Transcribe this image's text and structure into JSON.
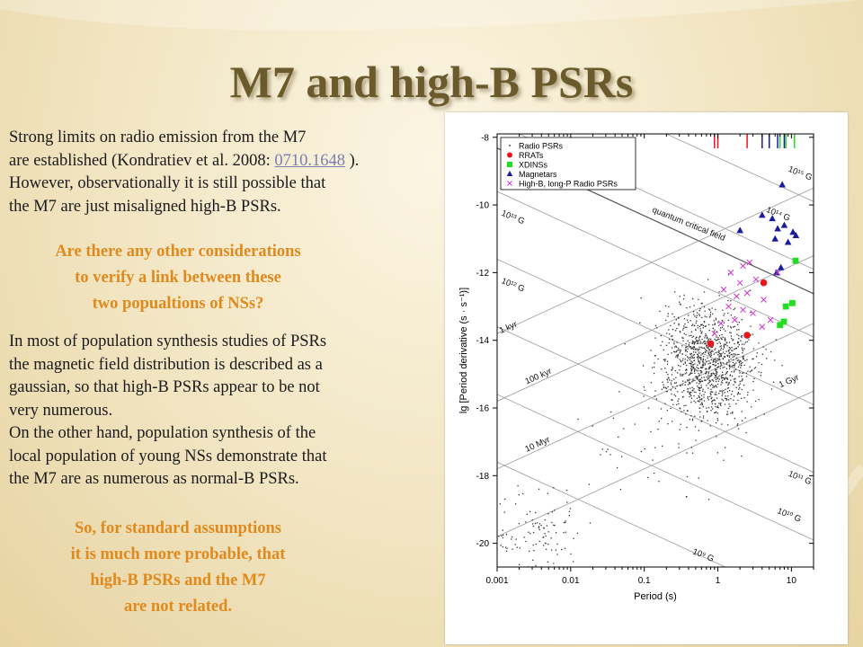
{
  "slide": {
    "title": "M7 and high-B PSRs",
    "para1": {
      "line1": "Strong limits on radio emission from the M7",
      "line2_pre": "are established (Kondratiev et al. 2008: ",
      "link": "0710.1648",
      "line2_post": " ).",
      "line3": "However, observationally it is still possible that",
      "line4": "the M7 are just misaligned high-B PSRs."
    },
    "question": [
      "Are there any other considerations",
      "to verify a link between these",
      "two popualtions of NSs?"
    ],
    "para2": [
      "In most of population synthesis studies of PSRs",
      "the magnetic field distribution is described as a",
      "gaussian, so that high-B PSRs appear to be not",
      "very numerous.",
      "On the other hand, population synthesis of the",
      "local population of young NSs demonstrate that",
      "the M7 are as numerous as normal-B PSRs."
    ],
    "conclusion": [
      "So, for standard assumptions",
      "it is much more probable, that",
      "high-B PSRs and the M7",
      "are not related."
    ],
    "colors": {
      "title": "#6b5b2c",
      "highlight": "#e08a1e",
      "link": "#7a7fb0"
    }
  },
  "chart_data": {
    "type": "scatter",
    "x_scale": "log",
    "xlabel": "Period (s)",
    "ylabel": "lg [Period derivative (s · s⁻¹)]",
    "xlim": [
      0.001,
      20
    ],
    "ylim": [
      -20.7,
      -7.9
    ],
    "x_ticks": [
      0.001,
      0.01,
      0.1,
      1,
      10
    ],
    "x_tick_labels": [
      "0.001",
      "0.01",
      "0.1",
      "1",
      "10"
    ],
    "y_ticks": [
      -20,
      -18,
      -16,
      -14,
      -12,
      -10,
      -8
    ],
    "y_tick_labels": [
      "-20",
      "-18",
      "-16",
      "-14",
      "-12",
      "-10",
      "-8"
    ],
    "legend_position": "top-left",
    "field_lines": [
      {
        "label": "10¹⁵ G",
        "B_log": 15
      },
      {
        "label": "10¹⁴ G",
        "B_log": 14
      },
      {
        "label": "10¹³ G",
        "B_log": 13
      },
      {
        "label": "10¹² G",
        "B_log": 12
      },
      {
        "label": "10¹¹ G",
        "B_log": 11
      },
      {
        "label": "10¹⁰ G",
        "B_log": 10
      },
      {
        "label": "10⁹ G",
        "B_log": 9
      }
    ],
    "age_lines": [
      {
        "label": "1 kyr",
        "tau_yr": 1000
      },
      {
        "label": "100 kyr",
        "tau_yr": 100000
      },
      {
        "label": "10 Myr",
        "tau_yr": 10000000
      },
      {
        "label": "1 Gyr",
        "tau_yr": 1000000000
      }
    ],
    "critical_line_label": "quantum critical field",
    "series": [
      {
        "name": "Radio PSRs",
        "marker": "dot",
        "color": "#333333",
        "clusters": [
          {
            "center_logP": -0.15,
            "center_logPdot": -14.7,
            "spread_logP": 0.32,
            "spread_logPdot": 0.85,
            "count": 1150
          },
          {
            "center_logP": -2.55,
            "center_logPdot": -19.6,
            "spread_logP": 0.35,
            "spread_logPdot": 0.55,
            "count": 110
          },
          {
            "center_logP": -1.2,
            "center_logPdot": -17.3,
            "spread_logP": 0.5,
            "spread_logPdot": 1.0,
            "count": 40
          }
        ]
      },
      {
        "name": "RRATs",
        "marker": "circle",
        "color": "#e8161b",
        "points": [
          [
            0.8,
            -14.1
          ],
          [
            2.5,
            -13.85
          ],
          [
            4.2,
            -12.3
          ]
        ]
      },
      {
        "name": "XDINSs",
        "marker": "square",
        "color": "#22dd22",
        "points": [
          [
            11.4,
            -11.65
          ],
          [
            8.4,
            -13.0
          ],
          [
            10.3,
            -12.9
          ],
          [
            7.9,
            -13.45
          ],
          [
            7.0,
            -13.55
          ]
        ]
      },
      {
        "name": "Magnetars",
        "marker": "triangle",
        "color": "#1a1aa0",
        "points": [
          [
            7.5,
            -9.4
          ],
          [
            5.5,
            -10.4
          ],
          [
            6.5,
            -10.7
          ],
          [
            8.0,
            -10.6
          ],
          [
            10.5,
            -10.8
          ],
          [
            6.0,
            -11.0
          ],
          [
            9.0,
            -11.1
          ],
          [
            11.5,
            -10.9
          ],
          [
            7.2,
            -11.85
          ],
          [
            6.3,
            -12.0
          ],
          [
            2.0,
            -10.75
          ],
          [
            4.0,
            -10.3
          ]
        ]
      },
      {
        "name": "High-B, long-P Radio PSRs",
        "marker": "cross",
        "color": "#cc33cc",
        "points": [
          [
            1.5,
            -12.0
          ],
          [
            2.0,
            -12.3
          ],
          [
            1.2,
            -12.5
          ],
          [
            1.8,
            -12.7
          ],
          [
            2.5,
            -12.6
          ],
          [
            3.3,
            -12.2
          ],
          [
            4.2,
            -12.8
          ],
          [
            1.4,
            -13.0
          ],
          [
            2.2,
            -13.1
          ],
          [
            3.0,
            -13.2
          ],
          [
            1.7,
            -13.4
          ],
          [
            5.2,
            -13.4
          ],
          [
            4.0,
            -13.6
          ],
          [
            0.9,
            -13.8
          ],
          [
            6.5,
            -12.0
          ],
          [
            2.7,
            -11.7
          ],
          [
            2.2,
            -11.8
          ],
          [
            1.1,
            -13.5
          ]
        ]
      }
    ],
    "top_markers": [
      {
        "color": "#e8161b",
        "x": [
          0.9,
          1.0,
          2.5
        ]
      },
      {
        "color": "#22dd22",
        "x": [
          5.0,
          7.0,
          8.4,
          11.0
        ]
      },
      {
        "color": "#1a1aa0",
        "x": [
          4.0,
          5.0,
          6.5,
          8.0
        ]
      }
    ]
  }
}
